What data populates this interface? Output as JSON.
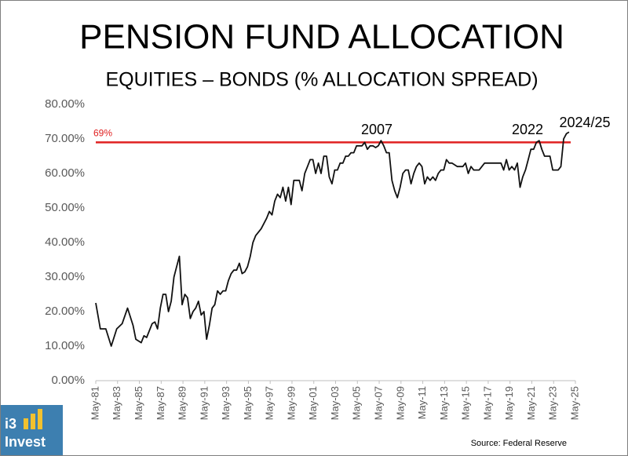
{
  "chart_data": {
    "type": "line",
    "title": "PENSION FUND ALLOCATION",
    "subtitle": "EQUITIES – BONDS (% ALLOCATION SPREAD)",
    "source": "Source: Federal Reserve",
    "logo": [
      "i3",
      "Invest"
    ],
    "x": [
      1981.33,
      1981.75,
      1982.25,
      1982.75,
      1983.25,
      1983.75,
      1984.25,
      1984.75,
      1985.0,
      1985.5,
      1985.75,
      1986.0,
      1986.5,
      1986.75,
      1987.0,
      1987.25,
      1987.5,
      1987.75,
      1988.0,
      1988.25,
      1988.5,
      1988.75,
      1989.0,
      1989.25,
      1989.5,
      1989.75,
      1990.0,
      1990.25,
      1990.5,
      1990.75,
      1991.0,
      1991.25,
      1991.5,
      1991.75,
      1992.0,
      1992.25,
      1992.5,
      1992.75,
      1993.0,
      1993.25,
      1993.5,
      1993.75,
      1994.0,
      1994.25,
      1994.5,
      1994.75,
      1995.0,
      1995.25,
      1995.5,
      1995.75,
      1996.0,
      1996.5,
      1997.0,
      1997.25,
      1997.5,
      1997.75,
      1998.0,
      1998.25,
      1998.5,
      1998.75,
      1999.0,
      1999.25,
      1999.5,
      1999.75,
      2000.0,
      2000.25,
      2000.5,
      2000.75,
      2001.0,
      2001.25,
      2001.5,
      2001.75,
      2002.0,
      2002.25,
      2002.5,
      2002.75,
      2003.0,
      2003.25,
      2003.5,
      2003.75,
      2004.0,
      2004.25,
      2004.5,
      2004.75,
      2005.0,
      2005.25,
      2005.5,
      2005.75,
      2006.0,
      2006.25,
      2006.5,
      2006.75,
      2007.0,
      2007.25,
      2007.5,
      2007.75,
      2008.0,
      2008.25,
      2008.5,
      2008.75,
      2009.0,
      2009.25,
      2009.5,
      2009.75,
      2010.0,
      2010.25,
      2010.5,
      2010.75,
      2011.0,
      2011.25,
      2011.5,
      2011.75,
      2012.0,
      2012.25,
      2012.5,
      2012.75,
      2013.0,
      2013.25,
      2013.5,
      2013.75,
      2014.0,
      2014.5,
      2015.0,
      2015.25,
      2015.5,
      2015.75,
      2016.0,
      2016.5,
      2017.0,
      2017.5,
      2018.0,
      2018.5,
      2018.75,
      2019.0,
      2019.25,
      2019.5,
      2019.75,
      2020.0,
      2020.25,
      2020.5,
      2020.75,
      2021.0,
      2021.25,
      2021.5,
      2021.75,
      2022.0,
      2022.25,
      2022.5,
      2022.75,
      2023.0,
      2023.25,
      2023.5,
      2023.75,
      2024.0,
      2024.25,
      2024.5,
      2024.75
    ],
    "series": [
      {
        "name": "Equities – Bonds spread",
        "color": "#111111",
        "values": [
          22.5,
          15,
          15,
          10,
          15,
          16.5,
          21,
          16,
          12,
          11,
          13,
          12.5,
          16.5,
          17,
          15,
          21,
          25,
          25,
          20,
          23,
          30,
          33,
          36,
          22,
          25,
          24,
          18,
          20,
          21,
          23,
          19,
          20,
          12,
          16,
          21,
          22,
          26,
          25,
          26,
          26,
          29,
          31,
          32,
          32,
          34,
          31,
          31.5,
          33,
          36,
          40,
          42,
          44,
          47,
          49,
          48,
          52,
          54,
          53,
          56,
          52,
          56,
          51,
          58,
          58,
          58,
          55,
          60,
          62,
          64,
          64,
          60,
          63,
          60,
          65,
          65,
          59,
          57,
          61,
          61,
          63,
          63,
          65,
          65,
          66,
          66,
          68,
          68,
          68,
          69,
          67,
          68,
          68,
          67.5,
          68,
          69.5,
          68,
          66,
          66,
          58,
          55,
          53,
          56,
          60,
          61,
          61,
          57,
          60,
          62,
          63,
          62,
          57,
          59,
          58,
          59,
          58,
          60,
          61,
          61,
          64,
          63,
          63,
          62,
          62,
          63,
          60,
          62,
          61,
          61,
          63,
          63,
          63,
          63,
          61,
          64,
          61,
          62,
          61,
          63,
          56,
          59,
          61,
          64,
          67,
          67,
          69,
          69.5,
          67,
          65,
          65,
          65,
          61,
          61,
          61,
          62,
          70,
          71.5,
          72
        ]
      }
    ],
    "xlim": [
      1981.33,
      2025.33
    ],
    "xticks": [
      {
        "value": 1981.33,
        "label": "May-81"
      },
      {
        "value": 1983.33,
        "label": "May-83"
      },
      {
        "value": 1985.33,
        "label": "May-85"
      },
      {
        "value": 1987.33,
        "label": "May-87"
      },
      {
        "value": 1989.33,
        "label": "May-89"
      },
      {
        "value": 1991.33,
        "label": "May-91"
      },
      {
        "value": 1993.33,
        "label": "May-93"
      },
      {
        "value": 1995.33,
        "label": "May-95"
      },
      {
        "value": 1997.33,
        "label": "May-97"
      },
      {
        "value": 1999.33,
        "label": "May-99"
      },
      {
        "value": 2001.33,
        "label": "May-01"
      },
      {
        "value": 2003.33,
        "label": "May-03"
      },
      {
        "value": 2005.33,
        "label": "May-05"
      },
      {
        "value": 2007.33,
        "label": "May-07"
      },
      {
        "value": 2009.33,
        "label": "May-09"
      },
      {
        "value": 2011.33,
        "label": "May-11"
      },
      {
        "value": 2013.33,
        "label": "May-13"
      },
      {
        "value": 2015.33,
        "label": "May-15"
      },
      {
        "value": 2017.33,
        "label": "May-17"
      },
      {
        "value": 2019.33,
        "label": "May-19"
      },
      {
        "value": 2021.33,
        "label": "May-21"
      },
      {
        "value": 2023.33,
        "label": "May-23"
      },
      {
        "value": 2025.33,
        "label": "May-25"
      }
    ],
    "ylim": [
      0,
      80
    ],
    "yticks": [
      {
        "value": 0,
        "label": "0.00%"
      },
      {
        "value": 10,
        "label": "10.00%"
      },
      {
        "value": 20,
        "label": "20.00%"
      },
      {
        "value": 30,
        "label": "30.00%"
      },
      {
        "value": 40,
        "label": "40.00%"
      },
      {
        "value": 50,
        "label": "50.00%"
      },
      {
        "value": 60,
        "label": "60.00%"
      },
      {
        "value": 70,
        "label": "70.00%"
      },
      {
        "value": 80,
        "label": "80.00%"
      }
    ],
    "grid": false,
    "reference_line": {
      "value": 69,
      "label": "69%",
      "color": "#e02020"
    },
    "annotations": [
      "2007",
      "2022",
      "2024/25"
    ]
  }
}
